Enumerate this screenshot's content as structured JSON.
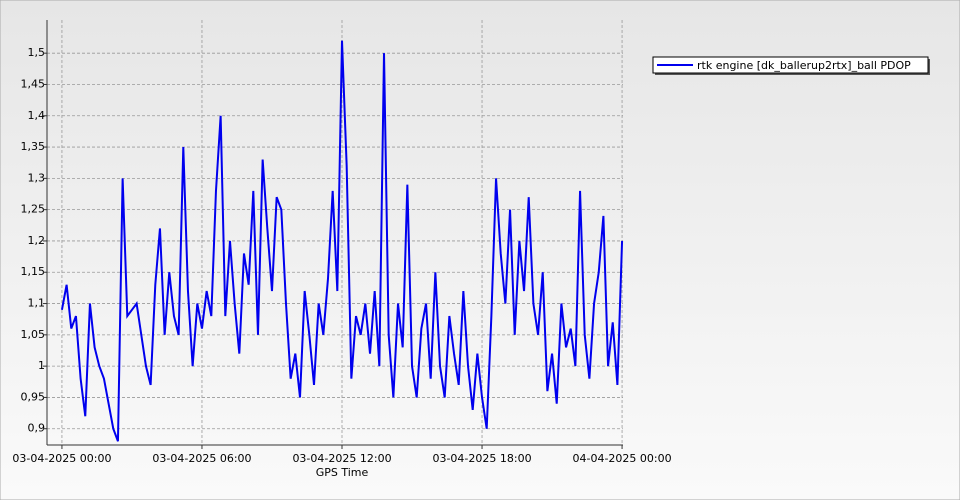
{
  "chart_data": {
    "type": "line",
    "x_label": "GPS Time",
    "x": [
      0,
      0.2,
      0.4,
      0.6,
      0.8,
      1,
      1.2,
      1.4,
      1.6,
      1.8,
      2,
      2.2,
      2.4,
      2.6,
      2.8,
      3,
      3.2,
      3.4,
      3.6,
      3.8,
      4,
      4.2,
      4.4,
      4.6,
      4.8,
      5,
      5.2,
      5.4,
      5.6,
      5.8,
      6,
      6.2,
      6.4,
      6.6,
      6.8,
      7,
      7.2,
      7.4,
      7.6,
      7.8,
      8,
      8.2,
      8.4,
      8.6,
      8.8,
      9,
      9.2,
      9.4,
      9.6,
      9.8,
      10,
      10.2,
      10.4,
      10.6,
      10.8,
      11,
      11.2,
      11.4,
      11.6,
      11.8,
      12,
      12.2,
      12.4,
      12.6,
      12.8,
      13,
      13.2,
      13.4,
      13.6,
      13.8,
      14,
      14.2,
      14.4,
      14.6,
      14.8,
      15,
      15.2,
      15.4,
      15.6,
      15.8,
      16,
      16.2,
      16.4,
      16.6,
      16.8,
      17,
      17.2,
      17.4,
      17.6,
      17.8,
      18,
      18.2,
      18.4,
      18.6,
      18.8,
      19,
      19.2,
      19.4,
      19.6,
      19.8,
      20,
      20.2,
      20.4,
      20.6,
      20.8,
      21,
      21.2,
      21.4,
      21.6,
      21.8,
      22,
      22.2,
      22.4,
      22.6,
      22.8,
      23,
      23.2,
      23.4,
      23.6,
      23.8,
      24
    ],
    "series": [
      {
        "name": "rtk engine [dk_ballerup2rtx]_ball PDOP",
        "color": "#0000ee",
        "values": [
          1.09,
          1.13,
          1.06,
          1.08,
          0.98,
          0.92,
          1.1,
          1.03,
          1.0,
          0.98,
          0.94,
          0.9,
          0.88,
          1.3,
          1.08,
          1.09,
          1.1,
          1.05,
          1.0,
          0.97,
          1.13,
          1.22,
          1.05,
          1.15,
          1.08,
          1.05,
          1.35,
          1.12,
          1.0,
          1.1,
          1.06,
          1.12,
          1.08,
          1.28,
          1.4,
          1.08,
          1.2,
          1.1,
          1.02,
          1.18,
          1.13,
          1.28,
          1.05,
          1.33,
          1.22,
          1.12,
          1.27,
          1.25,
          1.1,
          0.98,
          1.02,
          0.95,
          1.12,
          1.05,
          0.97,
          1.1,
          1.05,
          1.14,
          1.28,
          1.12,
          1.52,
          1.32,
          0.98,
          1.08,
          1.05,
          1.1,
          1.02,
          1.12,
          1.0,
          1.5,
          1.05,
          0.95,
          1.1,
          1.03,
          1.29,
          1.0,
          0.95,
          1.06,
          1.1,
          0.98,
          1.15,
          1.0,
          0.95,
          1.08,
          1.02,
          0.97,
          1.12,
          1.0,
          0.93,
          1.02,
          0.95,
          0.9,
          1.08,
          1.3,
          1.18,
          1.1,
          1.25,
          1.05,
          1.2,
          1.12,
          1.27,
          1.1,
          1.05,
          1.15,
          0.96,
          1.02,
          0.94,
          1.1,
          1.03,
          1.06,
          1.0,
          1.28,
          1.05,
          0.98,
          1.1,
          1.15,
          1.24,
          1.0,
          1.07,
          0.97,
          1.2
        ]
      }
    ],
    "xlim": [
      -0.64,
      24.04
    ],
    "xticks": [
      {
        "value": 0,
        "label": "03-04-2025 00:00"
      },
      {
        "value": 6,
        "label": "03-04-2025 06:00"
      },
      {
        "value": 12,
        "label": "03-04-2025 12:00"
      },
      {
        "value": 18,
        "label": "03-04-2025 18:00"
      },
      {
        "value": 24,
        "label": "04-04-2025 00:00"
      }
    ],
    "ylim": [
      0.874,
      1.553
    ],
    "yticks": [
      {
        "value": 0.9,
        "label": "0,9"
      },
      {
        "value": 0.95,
        "label": "0,95"
      },
      1,
      {
        "value": 1.05,
        "label": "1,05"
      },
      {
        "value": 1.1,
        "label": "1,1"
      },
      {
        "value": 1.15,
        "label": "1,15"
      },
      {
        "value": 1.2,
        "label": "1,2"
      },
      {
        "value": 1.25,
        "label": "1,25"
      },
      {
        "value": 1.3,
        "label": "1,3"
      },
      {
        "value": 1.35,
        "label": "1,35"
      },
      {
        "value": 1.4,
        "label": "1,4"
      },
      {
        "value": 1.45,
        "label": "1,45"
      },
      {
        "value": 1.5,
        "label": "1,5"
      }
    ],
    "grid": true,
    "legend": "top-right"
  }
}
